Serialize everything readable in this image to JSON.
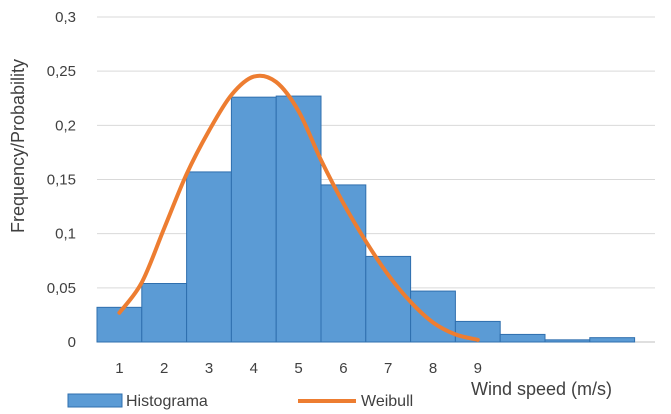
{
  "chart_data": {
    "type": "bar",
    "title": "",
    "xlabel": "Wind speed (m/s)",
    "ylabel": "Frequency/Probability",
    "ylim": [
      0,
      0.3
    ],
    "y_ticks": [
      "0",
      "0,05",
      "0,1",
      "0,15",
      "0,2",
      "0,25",
      "0,3"
    ],
    "y_tick_values": [
      0,
      0.05,
      0.1,
      0.15,
      0.2,
      0.25,
      0.3
    ],
    "x_ticks": [
      "1",
      "2",
      "3",
      "4",
      "5",
      "6",
      "7",
      "8",
      "9"
    ],
    "grid": true,
    "legend_position": "bottom",
    "series": [
      {
        "name": "Histograma",
        "kind": "bar",
        "color": "#5B9BD5",
        "values": [
          0.032,
          0.054,
          0.157,
          0.226,
          0.227,
          0.145,
          0.079,
          0.047,
          0.019,
          0.007,
          0.002,
          0.004
        ]
      },
      {
        "name": "Weibull",
        "kind": "line",
        "color": "#ED7D31",
        "x": [
          1,
          1.5,
          2,
          2.5,
          3,
          3.5,
          4,
          4.5,
          5,
          5.5,
          6,
          6.5,
          7,
          7.5,
          8,
          8.5,
          9
        ],
        "values": [
          0.027,
          0.055,
          0.105,
          0.155,
          0.195,
          0.228,
          0.245,
          0.24,
          0.213,
          0.168,
          0.128,
          0.093,
          0.062,
          0.037,
          0.018,
          0.007,
          0.002
        ]
      }
    ]
  }
}
